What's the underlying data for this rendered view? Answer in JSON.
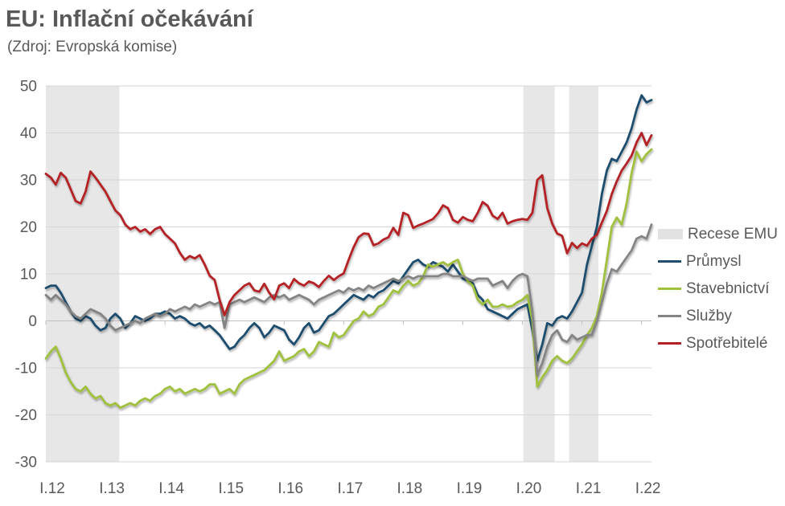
{
  "title": "EU: Inflační očekávání",
  "subtitle": "(Zdroj: Evropská komise)",
  "chart_data": {
    "type": "line",
    "title": "EU: Inflační očekávání",
    "subtitle": "(Zdroj: Evropská komise)",
    "x_unit": "month",
    "x_start": "2012-01",
    "x_end": "2022-03",
    "n_points": 123,
    "x_tick_labels": [
      "I.12",
      "I.13",
      "I.14",
      "I.15",
      "I.16",
      "I.17",
      "I.18",
      "I.19",
      "I.20",
      "I.21",
      "I.22"
    ],
    "x_tick_month_indices": [
      0,
      12,
      24,
      36,
      48,
      60,
      72,
      84,
      96,
      108,
      120
    ],
    "ylim": [
      -30,
      50
    ],
    "y_ticks": [
      50,
      40,
      30,
      20,
      10,
      0,
      -10,
      -20,
      -30
    ],
    "grid": true,
    "legend_position": "right",
    "colors": {
      "grid": "#d6d6d6",
      "zero_axis": "#c0c0c0",
      "text": "#595959",
      "background": "#ffffff"
    },
    "recession": {
      "label": "Recese EMU",
      "color": "#e7e7e7",
      "intervals_month_index": [
        [
          0,
          14.8
        ],
        [
          96.2,
          102.5
        ],
        [
          105.4,
          111.3
        ]
      ],
      "intervals_dates": [
        [
          "2012-01",
          "2013-03"
        ],
        [
          "2020-01",
          "2020-07"
        ],
        [
          "2020-10",
          "2021-03"
        ]
      ]
    },
    "series": [
      {
        "name": "Průmysl",
        "color": "#1f4e6e",
        "values": [
          7,
          7.5,
          7.5,
          6,
          4,
          2,
          0.5,
          0,
          1,
          0.5,
          -1,
          -2,
          -1.5,
          0.5,
          1.5,
          0.5,
          -1.5,
          -0.5,
          1,
          0.5,
          0,
          0.5,
          1.5,
          1.5,
          2,
          1.5,
          0.5,
          1,
          0.5,
          -0.5,
          -1,
          -0.5,
          -1.5,
          -1,
          -2,
          -3,
          -4.5,
          -6,
          -5.5,
          -4,
          -3,
          -1.5,
          -0.5,
          -1.5,
          -3.5,
          -2.5,
          -1,
          -1.5,
          -2,
          -4,
          -5,
          -3.5,
          -1.5,
          -0.5,
          -2.5,
          -2,
          -0.5,
          1,
          1.5,
          2.5,
          3.5,
          4.5,
          5.5,
          5,
          4.5,
          5.5,
          5,
          6,
          6.5,
          7.5,
          8.5,
          8,
          9.5,
          11,
          12.5,
          13,
          12,
          11.5,
          12.5,
          12,
          11.5,
          10.5,
          12,
          10.5,
          9,
          8.5,
          8,
          5.5,
          4.5,
          2.5,
          2,
          1.5,
          1,
          0.5,
          1.5,
          2.5,
          3,
          3.5,
          -2,
          -8.5,
          -5,
          -0.5,
          -1,
          0.5,
          1,
          0.5,
          2,
          4,
          6,
          12,
          16,
          20,
          27,
          32,
          34.5,
          34,
          36,
          38,
          41,
          45,
          48,
          46.5,
          47
        ]
      },
      {
        "name": "Stavebnictví",
        "color": "#a0c13e",
        "values": [
          -8,
          -6.5,
          -5.5,
          -8,
          -11,
          -13,
          -14.5,
          -15,
          -14,
          -15.5,
          -16.5,
          -16,
          -17.5,
          -18,
          -17.5,
          -18.5,
          -18,
          -17.5,
          -18,
          -17,
          -16.5,
          -17,
          -16,
          -15.5,
          -14.5,
          -14,
          -15,
          -14.5,
          -15.5,
          -15,
          -14.5,
          -15,
          -14.5,
          -13.5,
          -13.5,
          -15.5,
          -15,
          -14.5,
          -15.5,
          -13.5,
          -12.5,
          -12,
          -11.5,
          -11,
          -10.5,
          -9.5,
          -8.5,
          -6.5,
          -8.5,
          -8,
          -7.5,
          -6.5,
          -6,
          -7.5,
          -6.5,
          -4.5,
          -5,
          -5.5,
          -2.5,
          -3.5,
          -3,
          -1.5,
          0,
          0.5,
          2,
          1,
          1.5,
          3,
          3.5,
          5,
          6.5,
          6,
          7.5,
          8.5,
          7.5,
          8,
          9.5,
          12,
          11.5,
          12,
          12.5,
          11.8,
          12.5,
          13,
          10,
          8.5,
          7.5,
          4.5,
          3.5,
          4.5,
          3,
          3,
          3.5,
          3,
          3.2,
          4,
          4.5,
          5.5,
          0,
          -14,
          -12,
          -10.5,
          -8.5,
          -7.5,
          -8.5,
          -9,
          -8,
          -6.5,
          -5,
          -3,
          -1.5,
          1,
          6,
          13,
          20,
          22,
          20.5,
          25,
          31.5,
          36,
          34,
          35.5,
          36.5
        ]
      },
      {
        "name": "Služby",
        "color": "#848484",
        "values": [
          5.5,
          4.5,
          5.5,
          4.5,
          3.5,
          2,
          1,
          0.5,
          1.5,
          2.5,
          2,
          1.5,
          0.5,
          -1,
          -2,
          -1.5,
          -1,
          -0.5,
          0,
          -0.5,
          0.5,
          1,
          1.5,
          1,
          1.5,
          2.5,
          2,
          2.5,
          3,
          2.5,
          3.5,
          3,
          3.5,
          4,
          3.5,
          4,
          -1.5,
          3.5,
          4,
          4.5,
          4,
          4.5,
          5,
          4.5,
          4,
          5,
          5.5,
          5,
          5.5,
          4.5,
          5,
          5.5,
          5,
          4.5,
          3.5,
          4.5,
          5,
          5.5,
          6,
          6.5,
          6,
          7,
          6.5,
          7,
          6.5,
          7.5,
          7,
          7.5,
          8,
          8.5,
          9,
          8.5,
          9,
          9.5,
          9,
          9.5,
          9.5,
          9.5,
          9.5,
          9.5,
          10,
          10,
          9.5,
          9.5,
          9.5,
          9,
          8.5,
          9,
          9,
          9,
          7.5,
          8,
          8.5,
          7,
          8.5,
          9.5,
          10,
          9.5,
          2,
          -11.5,
          -9,
          -5.5,
          -3,
          -2,
          -4,
          -4.5,
          -3,
          -4,
          -3.5,
          -3,
          -3,
          0,
          4,
          8,
          11,
          10.5,
          12,
          13.5,
          15,
          17.5,
          18,
          17.5,
          20.5
        ]
      },
      {
        "name": "Spotřebitelé",
        "color": "#b42025",
        "values": [
          31.3,
          30.5,
          29,
          31.5,
          30.5,
          28,
          25.5,
          25,
          27.5,
          31.8,
          30.5,
          29,
          27.5,
          25.5,
          23.5,
          22.5,
          20.5,
          19.5,
          20,
          19,
          19.5,
          18.5,
          19.5,
          20,
          18.5,
          17.5,
          16.5,
          14.5,
          13,
          13.8,
          13.3,
          14,
          12,
          9.6,
          8.7,
          4.5,
          1.2,
          4,
          5.5,
          6.5,
          7.5,
          8,
          6.5,
          6.2,
          7.9,
          6,
          4.6,
          7.5,
          8,
          7,
          8.9,
          8,
          7.5,
          8.4,
          8,
          7.2,
          8.5,
          9.6,
          8.7,
          9.5,
          10.1,
          13,
          15.7,
          17.8,
          18.6,
          18.5,
          16.1,
          16.5,
          17.3,
          17.8,
          19.8,
          18.3,
          23,
          22.5,
          19.8,
          20.3,
          20.7,
          21.2,
          21.7,
          22.9,
          24.6,
          24,
          21.5,
          20.9,
          22.1,
          21.5,
          21.2,
          23,
          25.3,
          24.5,
          22.4,
          21.7,
          23,
          20.7,
          21.2,
          21.5,
          21.7,
          21.5,
          23,
          30,
          31,
          24,
          20.7,
          18.6,
          18.1,
          14.4,
          16.6,
          15.5,
          16.5,
          16,
          17.5,
          18.3,
          20.9,
          23.4,
          27,
          29.7,
          32,
          33.5,
          35.2,
          38,
          40,
          37.4,
          39.5
        ]
      }
    ]
  }
}
